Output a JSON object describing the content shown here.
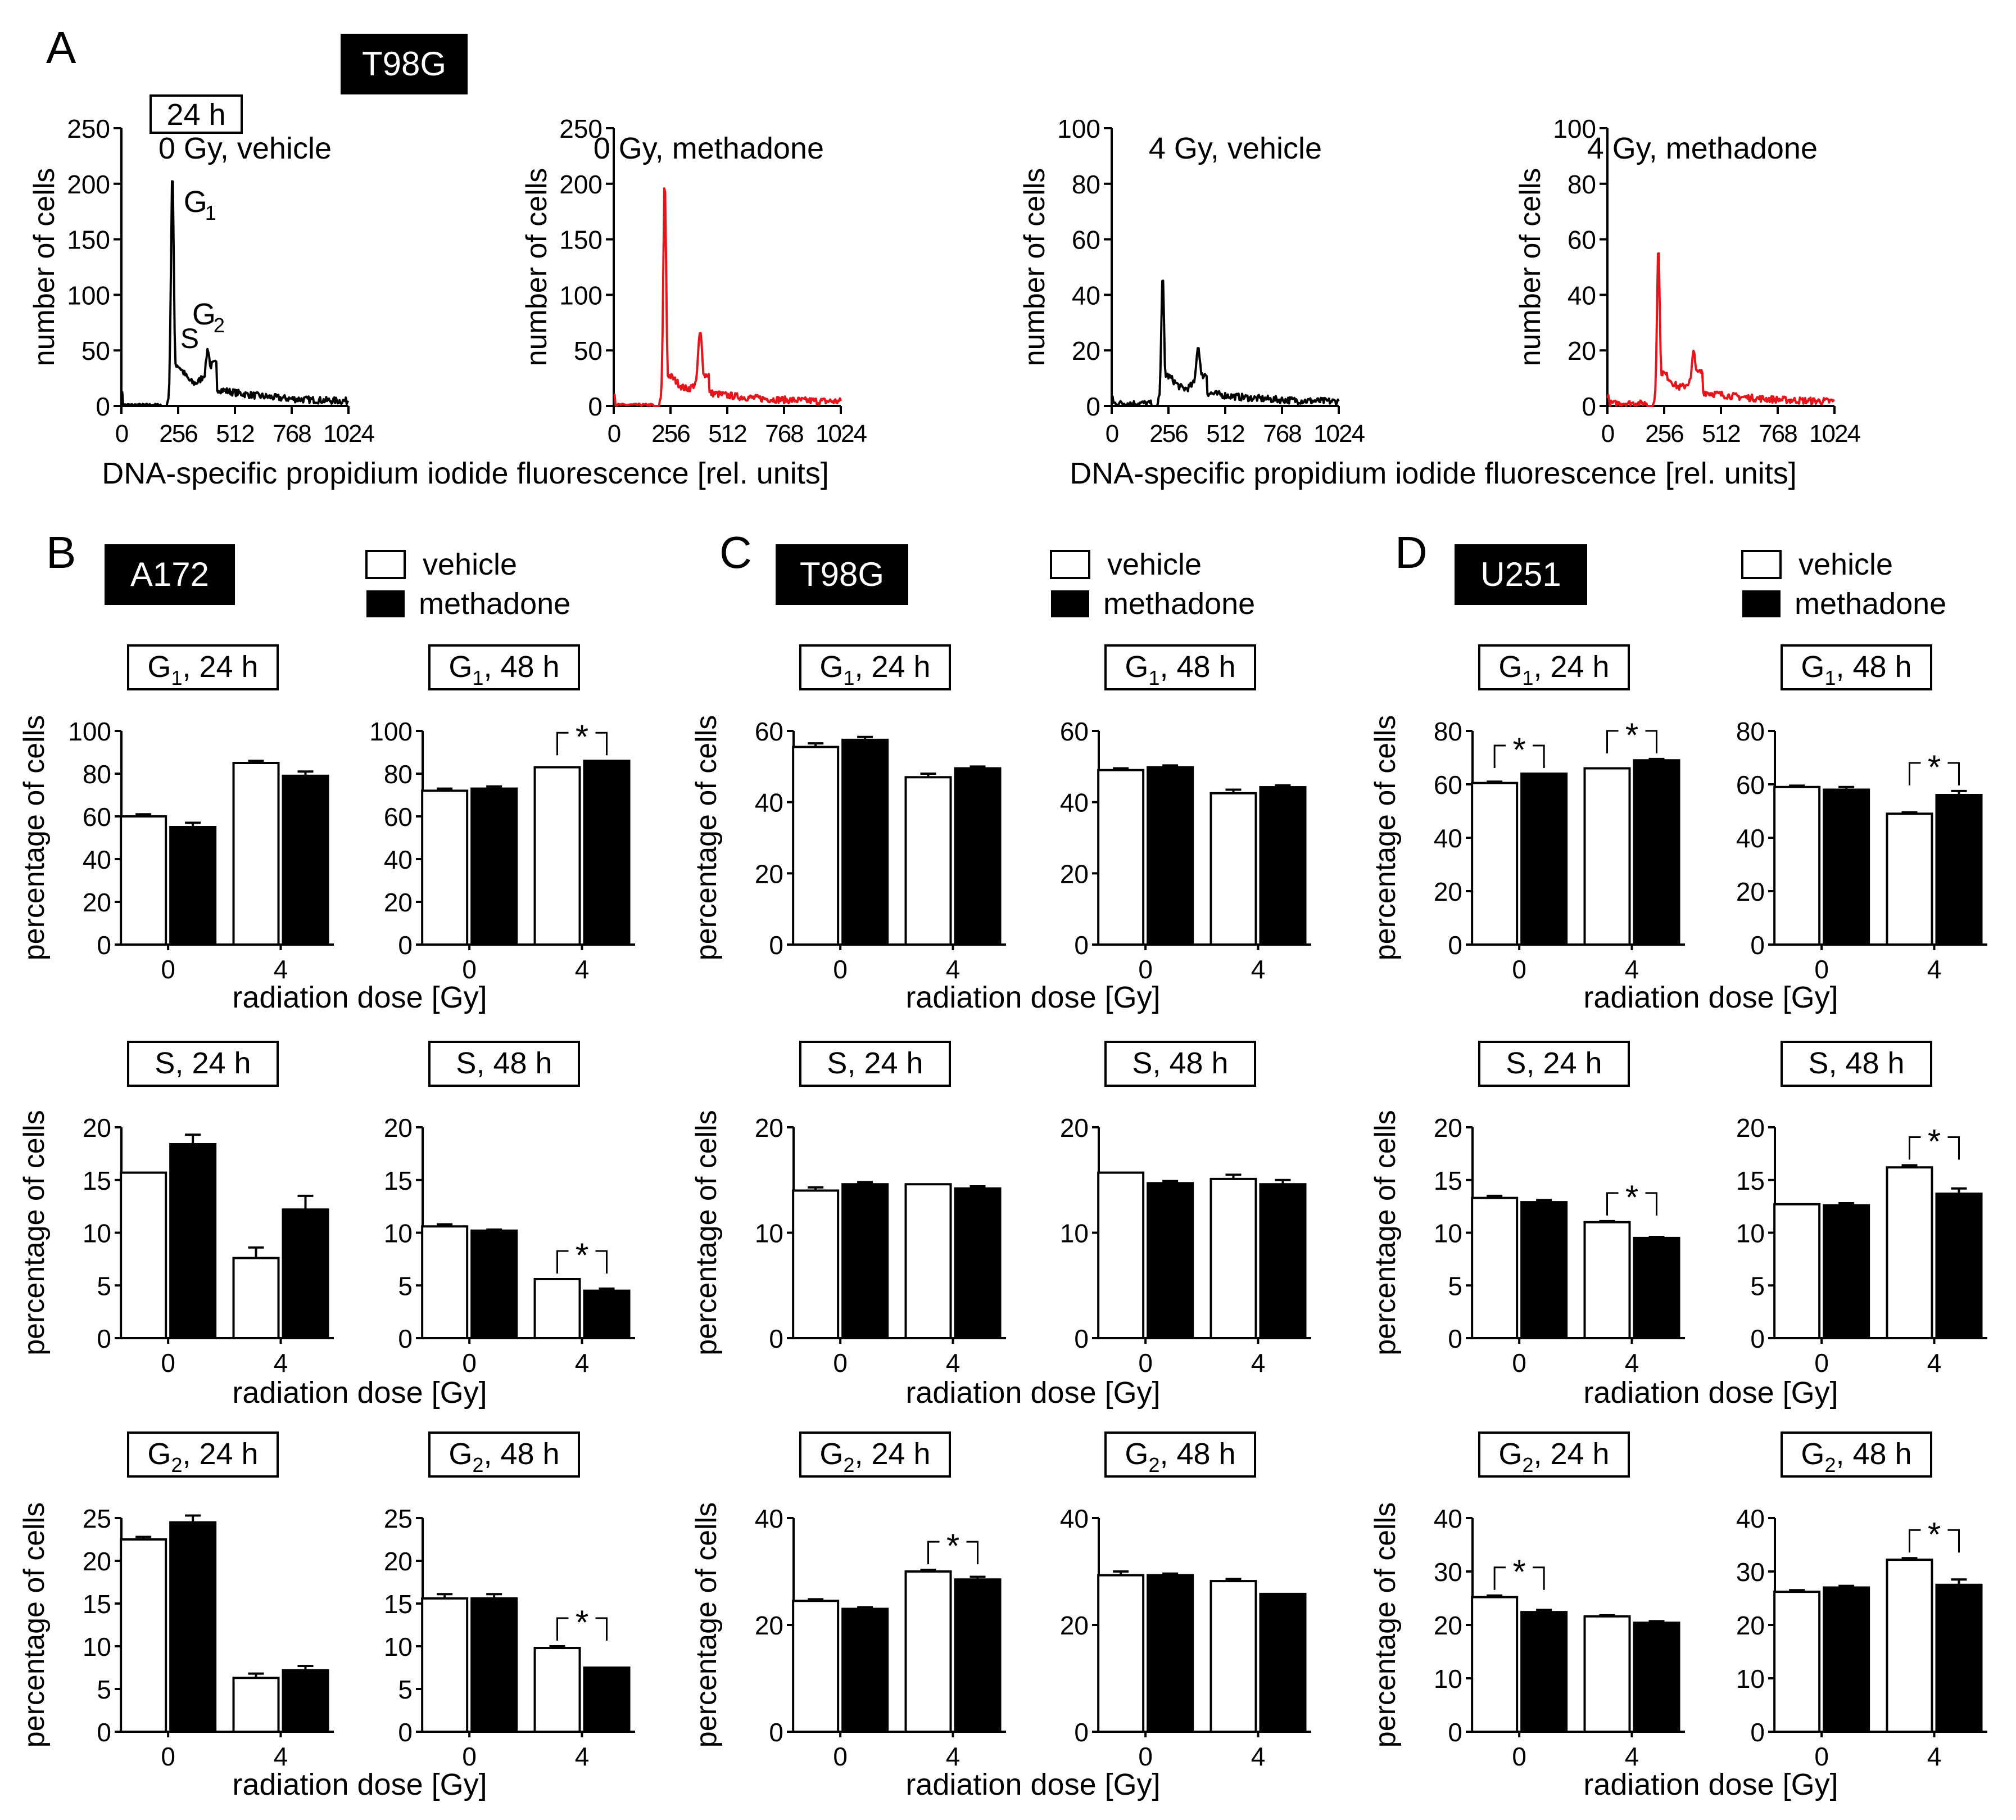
{
  "figure": {
    "panel_letters": {
      "a": "A",
      "b": "B",
      "c": "C",
      "d": "D"
    },
    "cell_lines": {
      "a": "T98G",
      "b": "A172",
      "c": "T98G",
      "d": "U251"
    },
    "legend": {
      "vehicle": "vehicle",
      "methadone": "methadone"
    },
    "time_label_a": "24 h",
    "common_xlabel_a": "DNA-specific propidium iodide fluorescence [rel. units]",
    "common_xlabel_bar": "radiation dose [Gy]",
    "ylabel_hist": "number of cells",
    "ylabel_bar": "percentage of cells",
    "significance_mark": "*",
    "colors": {
      "vehicle": "#ffffff",
      "methadone": "#000000",
      "hist_vehicle": "#000000",
      "hist_methadone": "#e8141c"
    }
  },
  "chart_data": [
    {
      "id": "A1",
      "type": "line",
      "title": "0 Gy, vehicle",
      "ylabel": "number of cells",
      "xticks": [
        0,
        256,
        512,
        768,
        1024
      ],
      "ylim": [
        0,
        250
      ],
      "yticks": [
        0,
        50,
        100,
        150,
        200,
        250
      ],
      "annotations": {
        "g1": "G",
        "g1_sub": "1",
        "s": "S",
        "g2": "G",
        "g2_sub": "2"
      },
      "peaks": {
        "g1_pos": 230,
        "g1_height": 210,
        "s_level": 35,
        "g2_pos": 390,
        "g2_height": 48
      }
    },
    {
      "id": "A2",
      "type": "line",
      "title": "0 Gy, methadone",
      "ylabel": "number of cells",
      "xticks": [
        0,
        256,
        512,
        768,
        1024
      ],
      "ylim": [
        0,
        250
      ],
      "yticks": [
        0,
        50,
        100,
        150,
        200,
        250
      ],
      "peaks": {
        "g1_pos": 230,
        "g1_height": 200,
        "s_level": 25,
        "g2_pos": 390,
        "g2_height": 62
      }
    },
    {
      "id": "A3",
      "type": "line",
      "title": "4 Gy, vehicle",
      "ylabel": "number of cells",
      "xticks": [
        0,
        256,
        512,
        768,
        1024
      ],
      "ylim": [
        0,
        100
      ],
      "yticks": [
        0,
        20,
        40,
        60,
        80,
        100
      ],
      "peaks": {
        "g1_pos": 230,
        "g1_height": 45,
        "s_level": 10,
        "g2_pos": 390,
        "g2_height": 20
      }
    },
    {
      "id": "A4",
      "type": "line",
      "title": "4 Gy, methadone",
      "ylabel": "number of cells",
      "xticks": [
        0,
        256,
        512,
        768,
        1024
      ],
      "ylim": [
        0,
        100
      ],
      "yticks": [
        0,
        20,
        40,
        60,
        80,
        100
      ],
      "peaks": {
        "g1_pos": 230,
        "g1_height": 56,
        "s_level": 11,
        "g2_pos": 390,
        "g2_height": 18
      }
    },
    {
      "id": "B-G1-24",
      "type": "bar",
      "phase": "G",
      "phase_sub": "1",
      "time": ", 24 h",
      "categories": [
        "0",
        "4"
      ],
      "ylim": [
        0,
        100
      ],
      "yticks": [
        0,
        20,
        40,
        60,
        80,
        100
      ],
      "vehicle": [
        60,
        85
      ],
      "vehicle_err": [
        1,
        1
      ],
      "methadone": [
        55,
        79
      ],
      "methadone_err": [
        2,
        2
      ],
      "sig": []
    },
    {
      "id": "B-G1-48",
      "type": "bar",
      "phase": "G",
      "phase_sub": "1",
      "time": ", 48 h",
      "categories": [
        "0",
        "4"
      ],
      "ylim": [
        0,
        100
      ],
      "yticks": [
        0,
        20,
        40,
        60,
        80,
        100
      ],
      "vehicle": [
        72,
        83
      ],
      "vehicle_err": [
        1,
        0
      ],
      "methadone": [
        73,
        86
      ],
      "methadone_err": [
        1,
        0
      ],
      "sig": [
        1
      ]
    },
    {
      "id": "B-S-24",
      "type": "bar",
      "phase": "S",
      "phase_sub": "",
      "time": ", 24 h",
      "categories": [
        "0",
        "4"
      ],
      "ylim": [
        0,
        20
      ],
      "yticks": [
        0,
        5,
        10,
        15,
        20
      ],
      "vehicle": [
        15.7,
        7.6
      ],
      "vehicle_err": [
        0,
        1
      ],
      "methadone": [
        18.4,
        12.2
      ],
      "methadone_err": [
        0.9,
        1.3
      ],
      "sig": []
    },
    {
      "id": "B-S-48",
      "type": "bar",
      "phase": "S",
      "phase_sub": "",
      "time": ", 48 h",
      "categories": [
        "0",
        "4"
      ],
      "ylim": [
        0,
        20
      ],
      "yticks": [
        0,
        5,
        10,
        15,
        20
      ],
      "vehicle": [
        10.6,
        5.6
      ],
      "vehicle_err": [
        0.2,
        0
      ],
      "methadone": [
        10.2,
        4.5
      ],
      "methadone_err": [
        0.1,
        0.2
      ],
      "sig": [
        1
      ]
    },
    {
      "id": "B-G2-24",
      "type": "bar",
      "phase": "G",
      "phase_sub": "2",
      "time": ", 24 h",
      "categories": [
        "0",
        "4"
      ],
      "ylim": [
        0,
        25
      ],
      "yticks": [
        0,
        5,
        10,
        15,
        20,
        25
      ],
      "vehicle": [
        22.5,
        6.3
      ],
      "vehicle_err": [
        0.3,
        0.5
      ],
      "methadone": [
        24.5,
        7.2
      ],
      "methadone_err": [
        0.8,
        0.5
      ],
      "sig": []
    },
    {
      "id": "B-G2-48",
      "type": "bar",
      "phase": "G",
      "phase_sub": "2",
      "time": ", 48 h",
      "categories": [
        "0",
        "4"
      ],
      "ylim": [
        0,
        25
      ],
      "yticks": [
        0,
        5,
        10,
        15,
        20,
        25
      ],
      "vehicle": [
        15.6,
        9.8
      ],
      "vehicle_err": [
        0.5,
        0.2
      ],
      "methadone": [
        15.6,
        7.5
      ],
      "methadone_err": [
        0.5,
        0
      ],
      "sig": [
        1
      ]
    },
    {
      "id": "C-G1-24",
      "type": "bar",
      "phase": "G",
      "phase_sub": "1",
      "time": ", 24 h",
      "categories": [
        "0",
        "4"
      ],
      "ylim": [
        0,
        60
      ],
      "yticks": [
        0,
        20,
        40,
        60
      ],
      "vehicle": [
        55.5,
        47
      ],
      "vehicle_err": [
        1,
        1
      ],
      "methadone": [
        57.5,
        49.5
      ],
      "methadone_err": [
        0.8,
        0.5
      ],
      "sig": []
    },
    {
      "id": "C-G1-48",
      "type": "bar",
      "phase": "G",
      "phase_sub": "1",
      "time": ", 48 h",
      "categories": [
        "0",
        "4"
      ],
      "ylim": [
        0,
        60
      ],
      "yticks": [
        0,
        20,
        40,
        60
      ],
      "vehicle": [
        49,
        42.5
      ],
      "vehicle_err": [
        0.5,
        1
      ],
      "methadone": [
        49.8,
        44.2
      ],
      "methadone_err": [
        0.5,
        0.5
      ],
      "sig": []
    },
    {
      "id": "C-S-24",
      "type": "bar",
      "phase": "S",
      "phase_sub": "",
      "time": ", 24 h",
      "categories": [
        "0",
        "4"
      ],
      "ylim": [
        0,
        20
      ],
      "yticks": [
        0,
        10,
        20
      ],
      "vehicle": [
        14,
        14.6
      ],
      "vehicle_err": [
        0.3,
        0
      ],
      "methadone": [
        14.6,
        14.2
      ],
      "methadone_err": [
        0.2,
        0.2
      ],
      "sig": []
    },
    {
      "id": "C-S-48",
      "type": "bar",
      "phase": "S",
      "phase_sub": "",
      "time": ", 48 h",
      "categories": [
        "0",
        "4"
      ],
      "ylim": [
        0,
        20
      ],
      "yticks": [
        0,
        10,
        20
      ],
      "vehicle": [
        15.7,
        15.1
      ],
      "vehicle_err": [
        0,
        0.4
      ],
      "methadone": [
        14.7,
        14.6
      ],
      "methadone_err": [
        0.2,
        0.4
      ],
      "sig": []
    },
    {
      "id": "C-G2-24",
      "type": "bar",
      "phase": "G",
      "phase_sub": "2",
      "time": ", 24 h",
      "categories": [
        "0",
        "4"
      ],
      "ylim": [
        0,
        40
      ],
      "yticks": [
        0,
        20,
        40
      ],
      "vehicle": [
        24.5,
        30
      ],
      "vehicle_err": [
        0.3,
        0.3
      ],
      "methadone": [
        23,
        28.5
      ],
      "methadone_err": [
        0.3,
        0.5
      ],
      "sig": [
        1
      ]
    },
    {
      "id": "C-G2-48",
      "type": "bar",
      "phase": "G",
      "phase_sub": "2",
      "time": ", 48 h",
      "categories": [
        "0",
        "4"
      ],
      "ylim": [
        0,
        40
      ],
      "yticks": [
        0,
        20,
        40
      ],
      "vehicle": [
        29.3,
        28.2
      ],
      "vehicle_err": [
        0.7,
        0.4
      ],
      "methadone": [
        29.3,
        25.8
      ],
      "methadone_err": [
        0.3,
        0
      ],
      "sig": []
    },
    {
      "id": "D-G1-24",
      "type": "bar",
      "phase": "G",
      "phase_sub": "1",
      "time": ", 24 h",
      "categories": [
        "0",
        "4"
      ],
      "ylim": [
        0,
        80
      ],
      "yticks": [
        0,
        20,
        40,
        60,
        80
      ],
      "vehicle": [
        60.5,
        66
      ],
      "vehicle_err": [
        0.5,
        0
      ],
      "methadone": [
        64,
        69
      ],
      "methadone_err": [
        0,
        0.5
      ],
      "sig": [
        0,
        1
      ]
    },
    {
      "id": "D-G1-48",
      "type": "bar",
      "phase": "G",
      "phase_sub": "1",
      "time": ", 48 h",
      "categories": [
        "0",
        "4"
      ],
      "ylim": [
        0,
        80
      ],
      "yticks": [
        0,
        20,
        40,
        60,
        80
      ],
      "vehicle": [
        59,
        49
      ],
      "vehicle_err": [
        0.5,
        0.5
      ],
      "methadone": [
        58,
        56
      ],
      "methadone_err": [
        1,
        1.5
      ],
      "sig": [
        1
      ]
    },
    {
      "id": "D-S-24",
      "type": "bar",
      "phase": "S",
      "phase_sub": "",
      "time": ", 24 h",
      "categories": [
        "0",
        "4"
      ],
      "ylim": [
        0,
        20
      ],
      "yticks": [
        0,
        5,
        10,
        15,
        20
      ],
      "vehicle": [
        13.3,
        11
      ],
      "vehicle_err": [
        0.2,
        0.1
      ],
      "methadone": [
        12.9,
        9.5
      ],
      "methadone_err": [
        0.2,
        0.1
      ],
      "sig": [
        1
      ]
    },
    {
      "id": "D-S-48",
      "type": "bar",
      "phase": "S",
      "phase_sub": "",
      "time": ", 48 h",
      "categories": [
        "0",
        "4"
      ],
      "ylim": [
        0,
        20
      ],
      "yticks": [
        0,
        5,
        10,
        15,
        20
      ],
      "vehicle": [
        12.7,
        16.2
      ],
      "vehicle_err": [
        0,
        0.2
      ],
      "methadone": [
        12.6,
        13.7
      ],
      "methadone_err": [
        0.2,
        0.5
      ],
      "sig": [
        1
      ]
    },
    {
      "id": "D-G2-24",
      "type": "bar",
      "phase": "G",
      "phase_sub": "2",
      "time": ", 24 h",
      "categories": [
        "0",
        "4"
      ],
      "ylim": [
        0,
        40
      ],
      "yticks": [
        0,
        10,
        20,
        30,
        40
      ],
      "vehicle": [
        25.2,
        21.6
      ],
      "vehicle_err": [
        0.3,
        0.2
      ],
      "methadone": [
        22.4,
        20.4
      ],
      "methadone_err": [
        0.4,
        0.3
      ],
      "sig": [
        0
      ]
    },
    {
      "id": "D-G2-48",
      "type": "bar",
      "phase": "G",
      "phase_sub": "2",
      "time": ", 48 h",
      "categories": [
        "0",
        "4"
      ],
      "ylim": [
        0,
        40
      ],
      "yticks": [
        0,
        10,
        20,
        30,
        40
      ],
      "vehicle": [
        26.2,
        32.2
      ],
      "vehicle_err": [
        0.3,
        0.3
      ],
      "methadone": [
        27,
        27.5
      ],
      "methadone_err": [
        0.3,
        1
      ],
      "sig": [
        1
      ]
    }
  ]
}
